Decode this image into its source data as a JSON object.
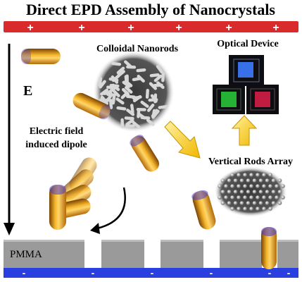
{
  "title": "Direct EPD Assembly of Nanocrystals",
  "labels": {
    "field": "E",
    "colloidal": "Colloidal Nanorods",
    "optical": "Optical Device",
    "dipole_line1": "Electric field",
    "dipole_line2": "induced dipole",
    "vertical": "Vertical Rods Array",
    "pmma": "PMMA"
  },
  "electrodes": {
    "top_sign": "+",
    "bottom_sign": "-",
    "top_color": "#d92b2b",
    "bottom_color": "#2a3fe0"
  },
  "colors": {
    "rod": "#f2a91a",
    "rod_dark": "#8a4e05",
    "dipole_tint": "#4b3cc9",
    "arrow_yellow": "#f5c400",
    "pmma_gray": "#9a9a9a",
    "device_green": "#2bd13c",
    "device_red": "#e0204a",
    "device_blue": "#3c7bff"
  }
}
